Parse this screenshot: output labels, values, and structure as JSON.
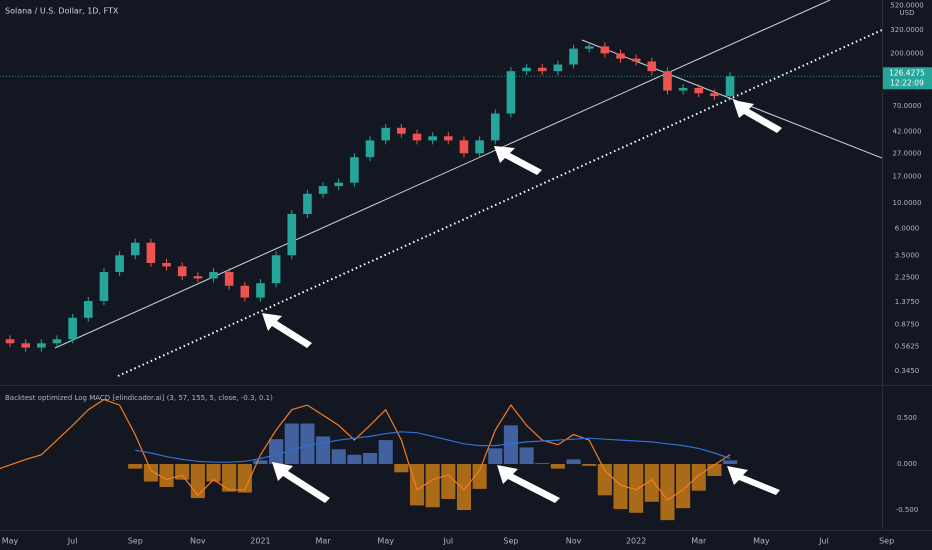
{
  "chart_data": [
    {
      "type": "candlestick",
      "title": "Solana / U.S. Dollar, 1D, FTX",
      "y_unit": "USD",
      "log_scale": true,
      "up_color": "#26a69a",
      "down_color": "#ef5350",
      "close": [
        0.65,
        0.6,
        0.55,
        0.6,
        0.65,
        1.0,
        1.4,
        2.5,
        3.5,
        4.5,
        3.0,
        2.8,
        2.3,
        2.2,
        2.5,
        1.9,
        1.5,
        2.0,
        3.5,
        8,
        12,
        14,
        15,
        25,
        35,
        45,
        40,
        35,
        38,
        35,
        27,
        35,
        60,
        140,
        150,
        140,
        160,
        220,
        230,
        200,
        180,
        170,
        140,
        95,
        100,
        90,
        85,
        126.4275
      ],
      "ylim": [
        0.26,
        583
      ],
      "yticks": [
        {
          "value": 520,
          "label": "520.0000"
        },
        {
          "value": 320,
          "label": "320.0000"
        },
        {
          "value": 200,
          "label": "200.0000"
        },
        {
          "value": 70,
          "label": "70.0000"
        },
        {
          "value": 42,
          "label": "42.0000"
        },
        {
          "value": 27,
          "label": "27.0000"
        },
        {
          "value": 17,
          "label": "17.0000"
        },
        {
          "value": 10,
          "label": "10.0000"
        },
        {
          "value": 6,
          "label": "6.0000"
        },
        {
          "value": 3.5,
          "label": "3.5000"
        },
        {
          "value": 2.25,
          "label": "2.2500"
        },
        {
          "value": 1.375,
          "label": "1.3750"
        },
        {
          "value": 0.875,
          "label": "0.8750"
        },
        {
          "value": 0.5625,
          "label": "0.5625"
        },
        {
          "value": 0.345,
          "label": "0.3450"
        }
      ],
      "last_price": {
        "value": 126.4275,
        "label": "126.4275"
      },
      "countdown": "12:22:09",
      "xlim": [
        0.36,
        59.9
      ],
      "xticks": [
        {
          "value": 1,
          "label": "May"
        },
        {
          "value": 5,
          "label": "Jul"
        },
        {
          "value": 9,
          "label": "Sep"
        },
        {
          "value": 13,
          "label": "Nov"
        },
        {
          "value": 17,
          "label": "2021"
        },
        {
          "value": 21,
          "label": "Mar"
        },
        {
          "value": 25,
          "label": "May"
        },
        {
          "value": 29,
          "label": "Jul"
        },
        {
          "value": 33,
          "label": "Sep"
        },
        {
          "value": 37,
          "label": "Nov"
        },
        {
          "value": 41,
          "label": "2022"
        },
        {
          "value": 45,
          "label": "Mar"
        },
        {
          "value": 49,
          "label": "May"
        },
        {
          "value": 53,
          "label": "Jul"
        },
        {
          "value": 57,
          "label": "Sep"
        }
      ]
    },
    {
      "type": "macd",
      "title": "Backtest optimized Log MACD [elindicador.ai] (3, 57, 155, 5, close, -0.3, 0.1)",
      "ylim": [
        -0.717,
        0.826
      ],
      "yticks": [
        {
          "value": 0.5,
          "label": "0.500"
        },
        {
          "value": 0,
          "label": "0.000"
        },
        {
          "value": -0.5,
          "label": "-0.500"
        }
      ],
      "lines": [
        {
          "color": "#f57c1f",
          "values": [
            -0.07,
            -0.01,
            0.05,
            0.1,
            0.26,
            0.42,
            0.59,
            0.7,
            0.64,
            0.32,
            -0.07,
            -0.17,
            -0.12,
            -0.34,
            -0.17,
            -0.28,
            -0.28,
            0.1,
            0.37,
            0.59,
            0.64,
            0.53,
            0.42,
            0.26,
            0.42,
            0.59,
            0.26,
            -0.28,
            -0.17,
            -0.12,
            -0.28,
            -0.07,
            0.37,
            0.64,
            0.42,
            0.26,
            0.21,
            0.32,
            0.26,
            -0.07,
            -0.23,
            -0.28,
            -0.17,
            -0.39,
            -0.28,
            -0.12,
            -0.01,
            0.1
          ]
        },
        {
          "color": "#2f6fd6",
          "values": [
            null,
            null,
            null,
            null,
            null,
            null,
            null,
            null,
            null,
            0.15,
            0.12,
            0.08,
            0.05,
            0.03,
            0.02,
            0.02,
            0.03,
            0.06,
            0.1,
            0.15,
            0.2,
            0.23,
            0.26,
            0.28,
            0.3,
            0.33,
            0.35,
            0.34,
            0.3,
            0.26,
            0.22,
            0.2,
            0.2,
            0.22,
            0.24,
            0.25,
            0.26,
            0.27,
            0.28,
            0.27,
            0.26,
            0.25,
            0.24,
            0.22,
            0.2,
            0.17,
            0.12,
            0.06
          ]
        }
      ],
      "histogram": {
        "up_color": "#4a6fb5",
        "down_color": "#c57a18",
        "values": [
          null,
          null,
          null,
          null,
          null,
          null,
          null,
          null,
          null,
          -0.05,
          -0.19,
          -0.25,
          -0.17,
          -0.37,
          -0.19,
          -0.3,
          -0.31,
          0.04,
          0.27,
          0.44,
          0.44,
          0.3,
          0.16,
          0.1,
          0.12,
          0.26,
          -0.09,
          -0.45,
          -0.47,
          -0.38,
          -0.5,
          -0.27,
          0.17,
          0.42,
          0.18,
          0.01,
          -0.05,
          0.05,
          -0.02,
          -0.34,
          -0.49,
          -0.53,
          -0.41,
          -0.61,
          -0.48,
          -0.29,
          -0.13,
          0.04
        ]
      }
    }
  ]
}
